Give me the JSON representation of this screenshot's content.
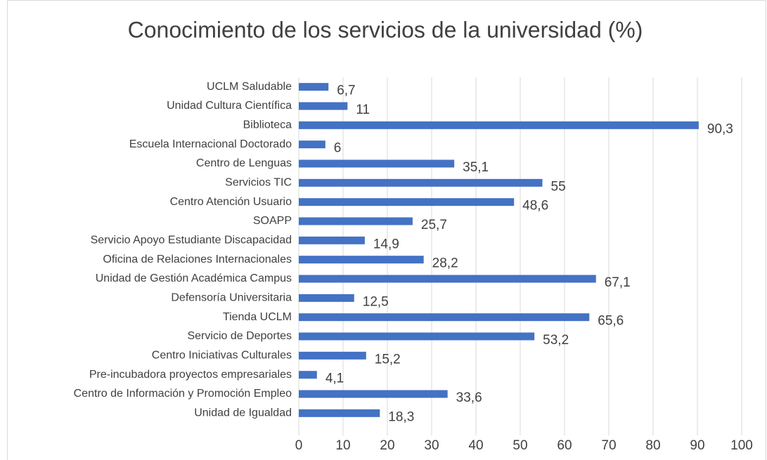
{
  "chart_data": {
    "type": "barh",
    "title": "Conocimiento de los servicios de la universidad (%)",
    "categories": [
      "UCLM Saludable",
      "Unidad Cultura Científica",
      "Biblioteca",
      "Escuela Internacional Doctorado",
      "Centro de Lenguas",
      "Servicios TIC",
      "Centro Atención Usuario",
      "SOAPP",
      "Servicio Apoyo Estudiante Discapacidad",
      "Oficina de Relaciones Internacionales",
      "Unidad de Gestión Académica Campus",
      "Defensoría Universitaria",
      "Tienda UCLM",
      "Servicio de Deportes",
      "Centro Iniciativas Culturales",
      "Pre-incubadora proyectos empresariales",
      "Centro de Información y Promoción Empleo",
      "Unidad de Igualdad"
    ],
    "values": [
      6.7,
      11,
      90.3,
      6,
      35.1,
      55,
      48.6,
      25.7,
      14.9,
      28.2,
      67.1,
      12.5,
      65.6,
      53.2,
      15.2,
      4.1,
      33.6,
      18.3
    ],
    "value_labels": [
      "6,7",
      "11",
      "90,3",
      "6",
      "35,1",
      "55",
      "48,6",
      "25,7",
      "14,9",
      "28,2",
      "67,1",
      "12,5",
      "65,6",
      "53,2",
      "15,2",
      "4,1",
      "33,6",
      "18,3"
    ],
    "color": "#4472c4",
    "xlim": [
      0,
      100
    ],
    "xticks": [
      0,
      10,
      20,
      30,
      40,
      50,
      60,
      70,
      80,
      90,
      100
    ],
    "grid": true
  }
}
